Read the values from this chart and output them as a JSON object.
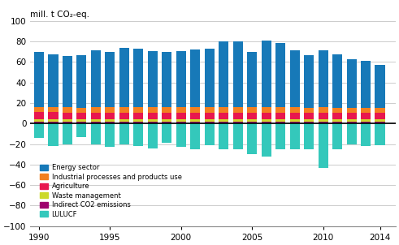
{
  "years": [
    1990,
    1991,
    1992,
    1993,
    1994,
    1995,
    1996,
    1997,
    1998,
    1999,
    2000,
    2001,
    2002,
    2003,
    2004,
    2005,
    2006,
    2007,
    2008,
    2009,
    2010,
    2011,
    2012,
    2013,
    2014
  ],
  "energy": [
    53.7,
    51.5,
    49.8,
    50.8,
    55.3,
    53.5,
    57.5,
    56.5,
    54.0,
    53.5,
    54.0,
    55.7,
    57.0,
    64.0,
    64.0,
    54.0,
    64.7,
    62.0,
    55.8,
    52.0,
    55.8,
    52.0,
    47.2,
    46.0,
    42.0
  ],
  "industry": [
    5.0,
    5.0,
    4.8,
    4.7,
    5.0,
    5.2,
    5.0,
    5.2,
    5.4,
    5.5,
    5.6,
    5.5,
    5.4,
    5.5,
    5.5,
    5.5,
    5.5,
    5.8,
    5.2,
    4.5,
    5.2,
    5.0,
    4.8,
    4.7,
    4.8
  ],
  "agriculture": [
    7.0,
    7.0,
    6.8,
    6.8,
    6.8,
    6.8,
    6.8,
    6.8,
    6.7,
    6.7,
    6.6,
    6.6,
    6.6,
    6.6,
    6.6,
    6.5,
    6.5,
    6.5,
    6.5,
    6.3,
    6.5,
    6.4,
    6.4,
    6.3,
    6.3
  ],
  "waste": [
    2.5,
    2.5,
    2.5,
    2.5,
    2.5,
    2.5,
    2.5,
    2.5,
    2.5,
    2.5,
    2.5,
    2.5,
    2.5,
    2.5,
    2.5,
    2.5,
    2.5,
    2.5,
    2.5,
    2.5,
    2.5,
    2.5,
    2.5,
    2.5,
    2.5
  ],
  "indirect": [
    1.5,
    1.5,
    1.5,
    1.5,
    1.5,
    1.5,
    1.5,
    1.5,
    1.5,
    1.5,
    1.5,
    1.5,
    1.5,
    1.5,
    1.5,
    1.5,
    1.5,
    1.5,
    1.5,
    1.5,
    1.5,
    1.5,
    1.5,
    1.5,
    1.5
  ],
  "lulucf": [
    -14.0,
    -22.0,
    -20.0,
    -13.0,
    -20.5,
    -22.5,
    -20.0,
    -22.0,
    -24.0,
    -19.0,
    -23.0,
    -25.0,
    -21.0,
    -25.0,
    -25.0,
    -30.0,
    -32.0,
    -25.0,
    -25.0,
    -25.0,
    -43.0,
    -25.0,
    -20.0,
    -22.0,
    -21.0
  ],
  "colors": {
    "energy": "#1779b8",
    "industry": "#f28020",
    "agriculture": "#e8174e",
    "waste": "#ccd929",
    "indirect": "#9e006e",
    "lulucf": "#34c8bb"
  },
  "top_label": "mill. t CO₂-eq.",
  "ylim": [
    -100,
    100
  ],
  "yticks": [
    -100,
    -80,
    -60,
    -40,
    -20,
    0,
    20,
    40,
    60,
    80,
    100
  ],
  "legend_labels": [
    "Energy sector",
    "Industrial processes and products use",
    "Agriculture",
    "Waste management",
    "Indirect CO2 emissions",
    "LULUCF"
  ],
  "background_color": "#ffffff",
  "grid_color": "#cccccc"
}
